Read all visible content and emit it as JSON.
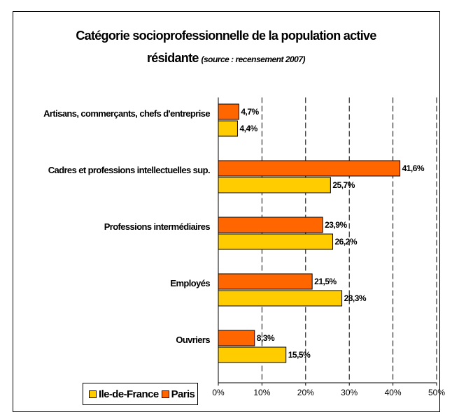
{
  "chart_data": {
    "type": "hbar",
    "title": "Catégorie socioprofessionnelle de la population active résidante",
    "subtitle": "(source : recensement 2007)",
    "categories": [
      "Artisans, commerçants, chefs d'entreprise",
      "Cadres et professions intellectuelles sup.",
      "Professions intermédiaires",
      "Employés",
      "Ouvriers"
    ],
    "series": [
      {
        "name": "Ile-de-France",
        "color": "#FFCC00",
        "values": [
          4.4,
          25.7,
          26.2,
          28.3,
          15.5
        ],
        "value_labels": [
          "4,4%",
          "25,7%",
          "26,2%",
          "28,3%",
          "15,5%"
        ]
      },
      {
        "name": "Paris",
        "color": "#FF6600",
        "values": [
          4.7,
          41.6,
          23.9,
          21.5,
          8.3
        ],
        "value_labels": [
          "4,7%",
          "41,6%",
          "23,9%",
          "21,5%",
          "8,3%"
        ]
      }
    ],
    "xlim": [
      0,
      50
    ],
    "xticks": [
      {
        "value": 0,
        "label": "0%"
      },
      {
        "value": 10,
        "label": "10%"
      },
      {
        "value": 20,
        "label": "20%"
      },
      {
        "value": 30,
        "label": "30%"
      },
      {
        "value": 40,
        "label": "40%"
      },
      {
        "value": 50,
        "label": "50%"
      }
    ],
    "grid": true,
    "legend": "bottom"
  }
}
